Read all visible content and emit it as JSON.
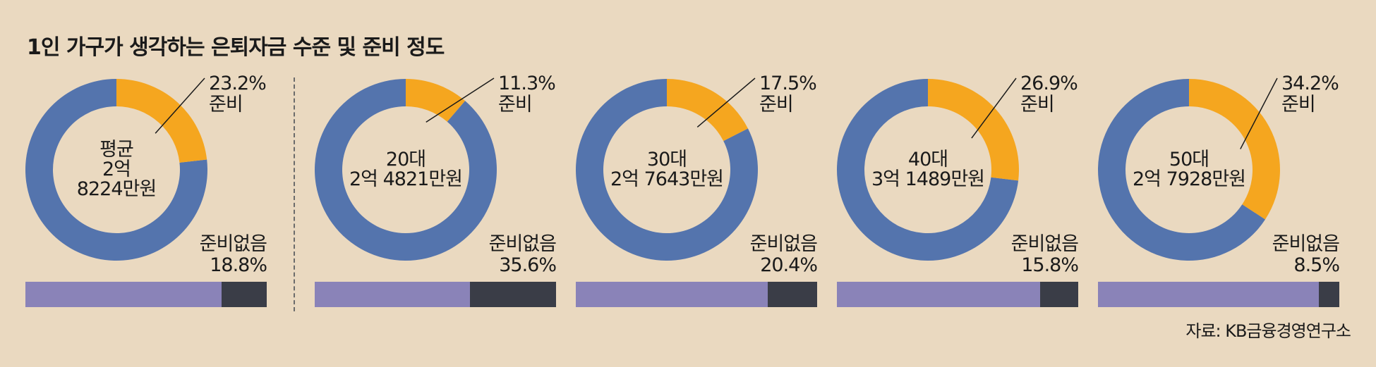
{
  "title": "1인 가구가 생각하는 은퇴자금 수준 및 준비 정도",
  "source": "자료: KB금융경영연구소",
  "colors": {
    "background": "#ead9c0",
    "donut_blue": "#5474ad",
    "donut_orange": "#f5a61f",
    "bar_purple": "#8a83b8",
    "bar_dark": "#3a3d47"
  },
  "chart_data": [
    {
      "type": "pie",
      "center_label": [
        "평균",
        "2억",
        "8224만원"
      ],
      "slices": [
        {
          "label": "준비",
          "value": 23.2
        },
        {
          "label": "",
          "value": 76.8
        }
      ],
      "prepared_label": [
        "23.2%",
        "준비"
      ],
      "bar": {
        "label": [
          "준비없음",
          "18.8%"
        ],
        "unprepared_pct": 18.8
      }
    },
    {
      "type": "pie",
      "center_label": [
        "20대",
        "2억 4821만원"
      ],
      "slices": [
        {
          "label": "준비",
          "value": 11.3
        },
        {
          "label": "",
          "value": 88.7
        }
      ],
      "prepared_label": [
        "11.3%",
        "준비"
      ],
      "bar": {
        "label": [
          "준비없음",
          "35.6%"
        ],
        "unprepared_pct": 35.6
      }
    },
    {
      "type": "pie",
      "center_label": [
        "30대",
        "2억 7643만원"
      ],
      "slices": [
        {
          "label": "준비",
          "value": 17.5
        },
        {
          "label": "",
          "value": 82.5
        }
      ],
      "prepared_label": [
        "17.5%",
        "준비"
      ],
      "bar": {
        "label": [
          "준비없음",
          "20.4%"
        ],
        "unprepared_pct": 20.4
      }
    },
    {
      "type": "pie",
      "center_label": [
        "40대",
        "3억 1489만원"
      ],
      "slices": [
        {
          "label": "준비",
          "value": 26.9
        },
        {
          "label": "",
          "value": 73.1
        }
      ],
      "prepared_label": [
        "26.9%",
        "준비"
      ],
      "bar": {
        "label": [
          "준비없음",
          "15.8%"
        ],
        "unprepared_pct": 15.8
      }
    },
    {
      "type": "pie",
      "center_label": [
        "50대",
        "2억 7928만원"
      ],
      "slices": [
        {
          "label": "준비",
          "value": 34.2
        },
        {
          "label": "",
          "value": 65.8
        }
      ],
      "prepared_label": [
        "34.2%",
        "준비"
      ],
      "bar": {
        "label": [
          "준비없음",
          "8.5%"
        ],
        "unprepared_pct": 8.5
      }
    }
  ]
}
